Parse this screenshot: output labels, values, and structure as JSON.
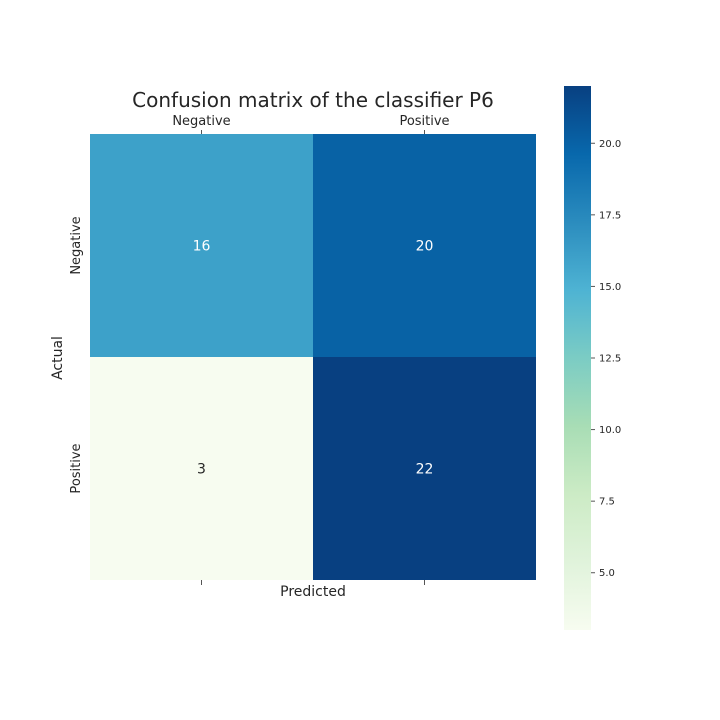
{
  "chart_data": {
    "type": "heatmap",
    "title": "Confusion matrix of the classifier P6",
    "xlabel": "Predicted",
    "ylabel": "Actual",
    "x_categories": [
      "Negative",
      "Positive"
    ],
    "y_categories": [
      "Negative",
      "Positive"
    ],
    "values": [
      [
        16,
        20
      ],
      [
        3,
        22
      ]
    ],
    "colormap": "GnBu",
    "colorbar": {
      "range": [
        3,
        22
      ],
      "ticks": [
        "5.0",
        "7.5",
        "10.0",
        "12.5",
        "15.0",
        "17.5",
        "20.0"
      ]
    },
    "colors": {
      "text_on_dark": "#ffffff",
      "text_on_light": "#262626",
      "title": "#262626",
      "tick": "#262626"
    }
  }
}
